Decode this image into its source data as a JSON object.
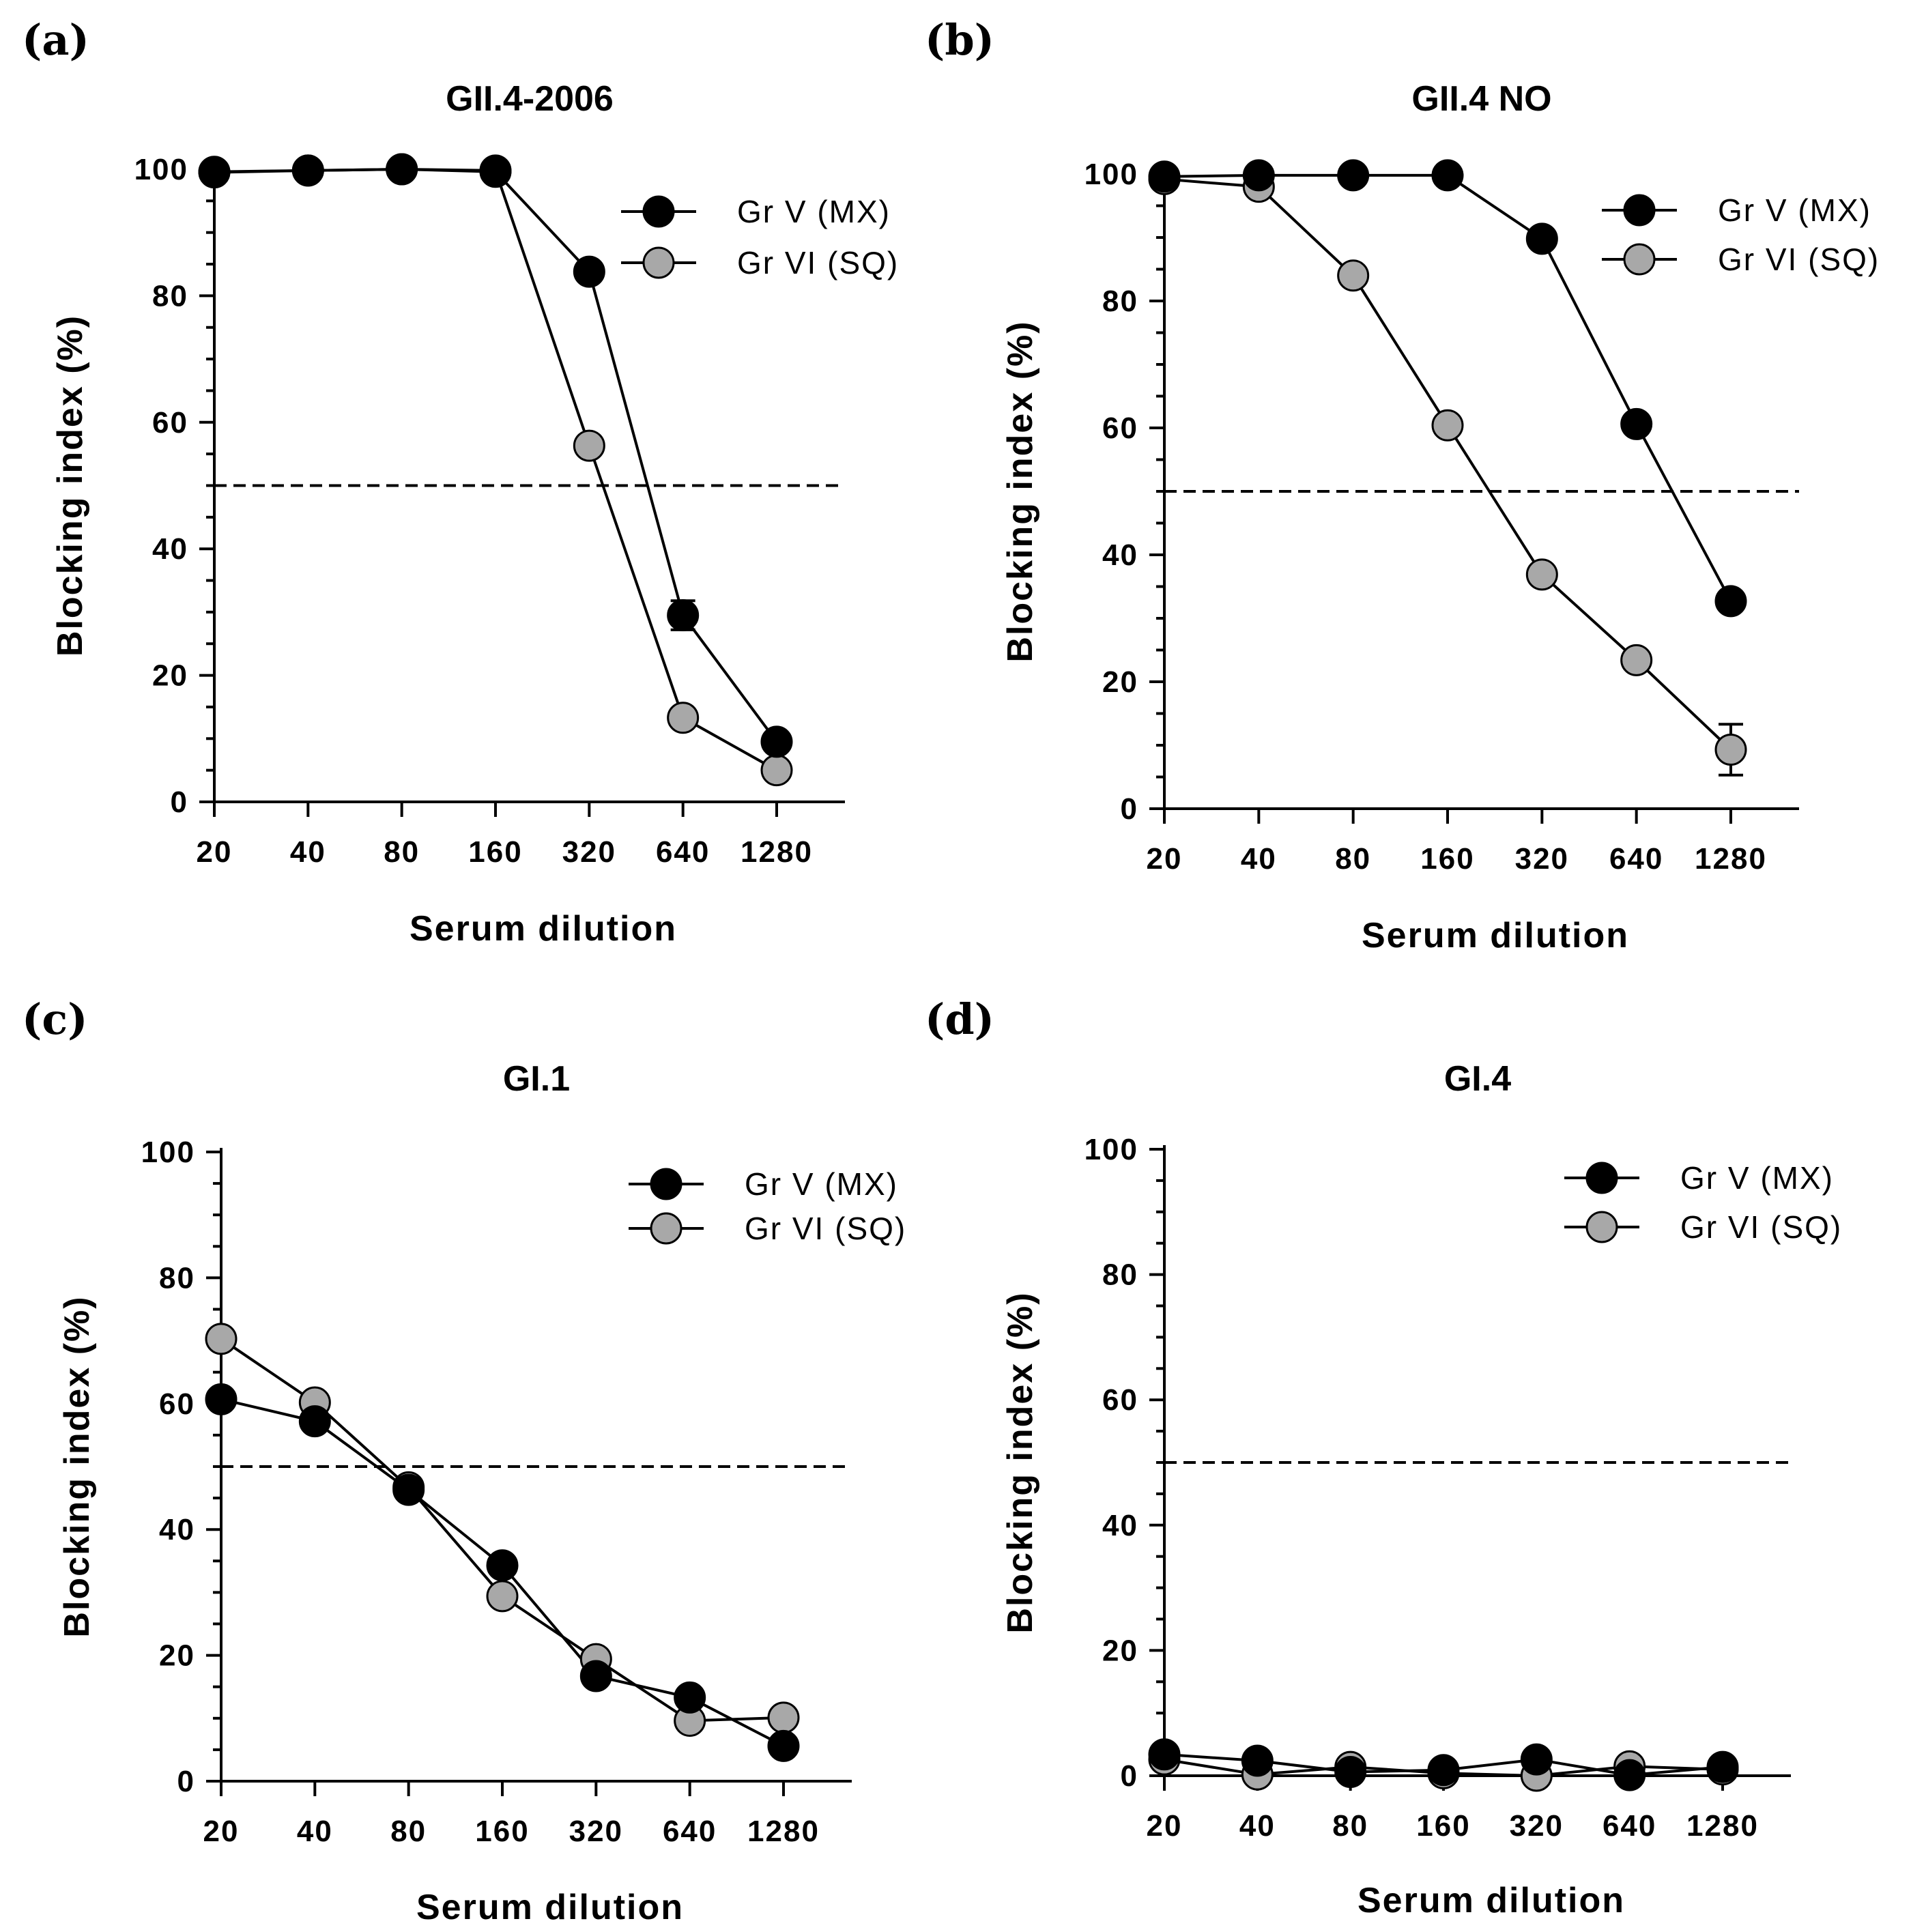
{
  "colors": {
    "gr_v_fill": "#000000",
    "gr_vi_fill": "#a8a8a8",
    "marker_stroke": "#000000"
  },
  "chart_data": [
    {
      "panel": "(a)",
      "type": "line",
      "title": "GII.4-2006",
      "xlabel": "Serum dilution",
      "ylabel": "Blocking index (%)",
      "categories": [
        "20",
        "40",
        "80",
        "160",
        "320",
        "640",
        "1280"
      ],
      "ylim": [
        0,
        100
      ],
      "yticks": [
        "0",
        "20",
        "40",
        "60",
        "80",
        "100"
      ],
      "reference_line": 50,
      "legend_position": "top-right",
      "series": [
        {
          "name": "Gr V (MX)",
          "values": [
            99.5,
            99.8,
            100,
            99.6,
            83.8,
            29.5,
            9.5
          ],
          "errors": [
            0,
            0,
            0,
            0,
            0,
            2.3,
            0
          ]
        },
        {
          "name": "Gr VI (SQ)",
          "values": [
            99.6,
            99.8,
            100,
            99.8,
            56.3,
            13.3,
            5.0
          ],
          "errors": [
            0,
            0,
            0,
            0,
            0,
            0,
            0
          ]
        }
      ]
    },
    {
      "panel": "(b)",
      "type": "line",
      "title": "GII.4 NO",
      "xlabel": "Serum dilution",
      "ylabel": "Blocking index (%)",
      "categories": [
        "20",
        "40",
        "80",
        "160",
        "320",
        "640",
        "1280"
      ],
      "ylim": [
        0,
        100
      ],
      "yticks": [
        "0",
        "20",
        "40",
        "60",
        "80",
        "100"
      ],
      "reference_line": 50,
      "legend_position": "top-right",
      "series": [
        {
          "name": "Gr V (MX)",
          "values": [
            99.6,
            99.8,
            99.8,
            99.8,
            89.8,
            60.6,
            32.7
          ],
          "errors": [
            0,
            0,
            0,
            0,
            0,
            0,
            0
          ]
        },
        {
          "name": "Gr VI (SQ)",
          "values": [
            99.2,
            98.0,
            84.0,
            60.4,
            36.9,
            23.4,
            9.3
          ],
          "errors": [
            0,
            0,
            0,
            0,
            0,
            0,
            4.0
          ]
        }
      ]
    },
    {
      "panel": "(c)",
      "type": "line",
      "title": "GI.1",
      "xlabel": "Serum dilution",
      "ylabel": "Blocking index (%)",
      "categories": [
        "20",
        "40",
        "80",
        "160",
        "320",
        "640",
        "1280"
      ],
      "ylim": [
        0,
        100
      ],
      "yticks": [
        "0",
        "20",
        "40",
        "60",
        "80",
        "100"
      ],
      "reference_line": 50,
      "legend_position": "top-right",
      "series": [
        {
          "name": "Gr V (MX)",
          "values": [
            60.7,
            57.2,
            46.3,
            34.3,
            16.7,
            13.3,
            5.6
          ],
          "errors": [
            0,
            0,
            0,
            0,
            0,
            0,
            0
          ]
        },
        {
          "name": "Gr VI (SQ)",
          "values": [
            70.3,
            60.2,
            46.7,
            29.4,
            19.4,
            9.6,
            10.1
          ],
          "errors": [
            0,
            0,
            0,
            0,
            0,
            0,
            0
          ]
        }
      ]
    },
    {
      "panel": "(d)",
      "type": "line",
      "title": "GI.4",
      "xlabel": "Serum dilution",
      "ylabel": "Blocking index (%)",
      "categories": [
        "20",
        "40",
        "80",
        "160",
        "320",
        "640",
        "1280"
      ],
      "ylim": [
        0,
        100
      ],
      "yticks": [
        "0",
        "20",
        "40",
        "60",
        "80",
        "100"
      ],
      "reference_line": 50,
      "legend_position": "top-right",
      "series": [
        {
          "name": "Gr V (MX)",
          "values": [
            3.4,
            2.4,
            0.6,
            0.9,
            2.6,
            0.1,
            1.4
          ],
          "errors": [
            0,
            0,
            0,
            0,
            0,
            0,
            0
          ]
        },
        {
          "name": "Gr VI (SQ)",
          "values": [
            2.6,
            0.2,
            1.4,
            0.4,
            0.0,
            1.5,
            1.0
          ],
          "errors": [
            0,
            0,
            0,
            0,
            0,
            0,
            0
          ]
        }
      ]
    }
  ]
}
